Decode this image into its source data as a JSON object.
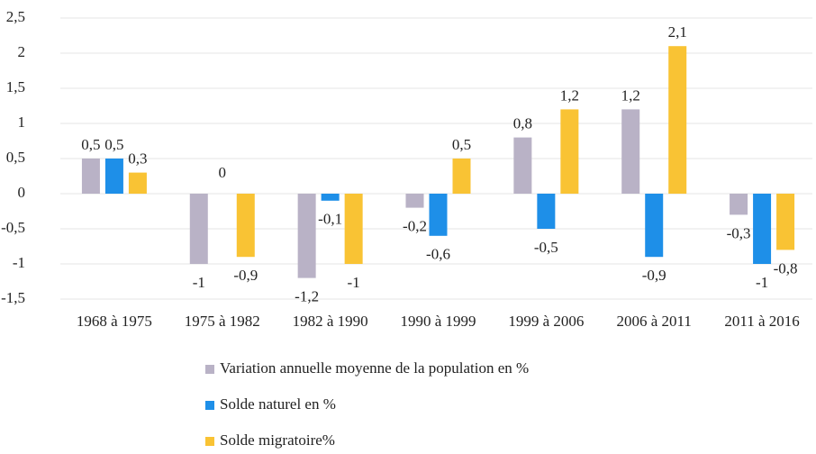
{
  "chart_data": {
    "type": "bar",
    "categories": [
      "1968 à 1975",
      "1975 à 1982",
      "1982 à 1990",
      "1990 à 1999",
      "1999 à 2006",
      "2006 à 2011",
      "2011 à 2016"
    ],
    "series": [
      {
        "name": "Variation annuelle moyenne de la population en %",
        "color": "#b9b2c6",
        "values": [
          0.5,
          -1,
          -1.2,
          -0.2,
          0.8,
          1.2,
          -0.3
        ],
        "value_labels": [
          "0,5",
          "-1",
          "-1,2",
          "-0,2",
          "0,8",
          "1,2",
          "-0,3"
        ]
      },
      {
        "name": "Solde naturel en %",
        "color": "#1e8fe8",
        "values": [
          0.5,
          0,
          -0.1,
          -0.6,
          -0.5,
          -0.9,
          -1
        ],
        "value_labels": [
          "0,5",
          "0",
          "-0,1",
          "-0,6",
          "-0,5",
          "-0,9",
          "-1"
        ]
      },
      {
        "name": "Solde migratoire%",
        "color": "#f9c334",
        "values": [
          0.3,
          -0.9,
          -1,
          0.5,
          1.2,
          2.1,
          -0.8
        ],
        "value_labels": [
          "0,3",
          "-0,9",
          "-1",
          "0,5",
          "1,2",
          "2,1",
          "-0,8"
        ]
      }
    ],
    "ylim": [
      -1.5,
      2.5
    ],
    "yticks": [
      {
        "value": 2.5,
        "label": "2,5"
      },
      2,
      {
        "value": 1.5,
        "label": "1,5"
      },
      1,
      {
        "value": 0.5,
        "label": "0,5"
      },
      0,
      {
        "value": -0.5,
        "label": "-0,5"
      },
      -1,
      {
        "value": -1.5,
        "label": "-1,5"
      }
    ],
    "grid": true,
    "legend": "bottom"
  }
}
